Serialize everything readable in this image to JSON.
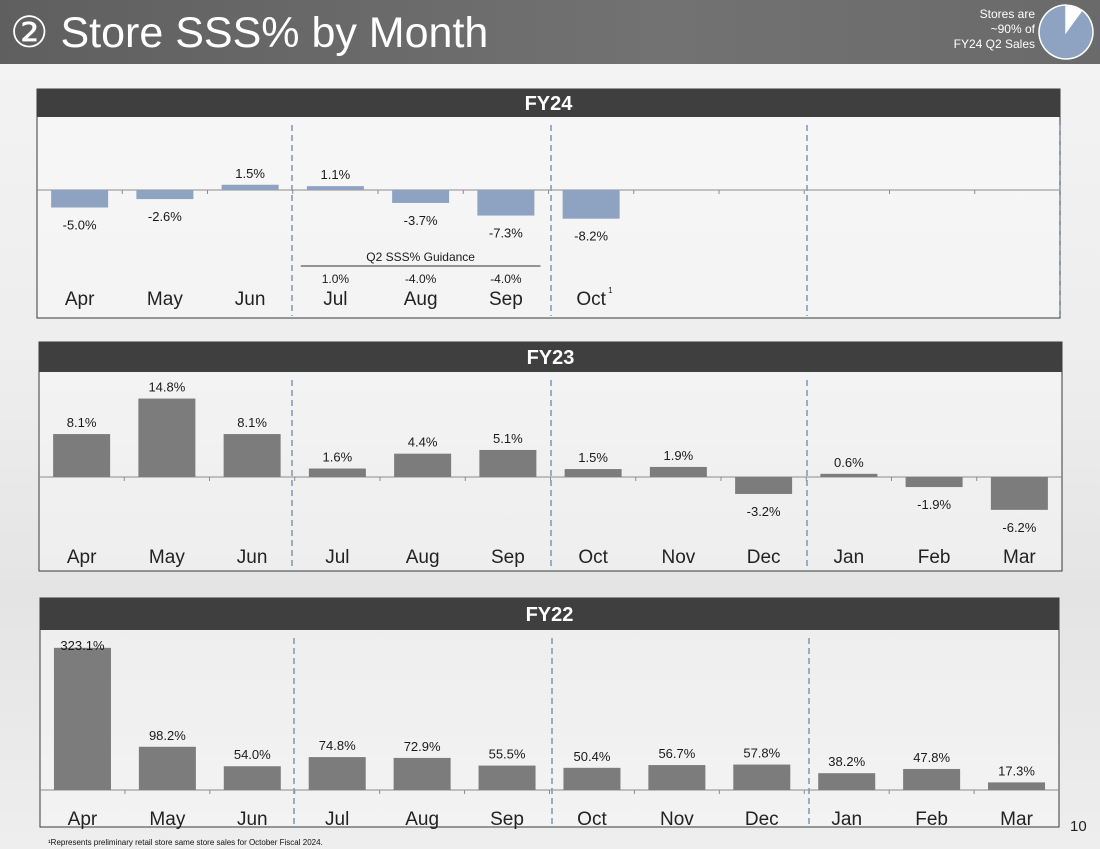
{
  "title": "② Store SSS% by Month",
  "stores_note": [
    "Stores are",
    "~90% of",
    "FY24 Q2 Sales"
  ],
  "colors": {
    "fy24_bar": "#8ea3c2",
    "fy23_bar": "#7c7c7c",
    "fy22_bar": "#7c7c7c",
    "panel_header": "#3f3f3f",
    "quarter_divider": "#8a9bb0",
    "pie_fill": "#8ea3c2"
  },
  "pie_share": 0.9,
  "footnote": "¹Represents preliminary retail store same store sales for October Fiscal 2024.",
  "page_number": "10",
  "chart_data": [
    {
      "type": "bar",
      "title": "FY24",
      "categories": [
        "Apr",
        "May",
        "Jun",
        "Jul",
        "Aug",
        "Sep",
        "Oct",
        "",
        "",
        "",
        "",
        ""
      ],
      "values": [
        -5.0,
        -2.6,
        1.5,
        1.1,
        -3.7,
        -7.3,
        -8.2,
        null,
        null,
        null,
        null,
        null
      ],
      "value_labels": [
        "-5.0%",
        "-2.6%",
        "1.5%",
        "1.1%",
        "-3.7%",
        "-7.3%",
        "-8.2%",
        "",
        "",
        "",
        "",
        ""
      ],
      "footnote_marker": {
        "category": "Oct",
        "text": "1"
      },
      "guidance": {
        "title": "Q2 SSS% Guidance",
        "categories": [
          "Jul",
          "Aug",
          "Sep"
        ],
        "values": [
          1.0,
          -4.0,
          -4.0
        ],
        "labels": [
          "1.0%",
          "-4.0%",
          "-4.0%"
        ]
      },
      "ylim": [
        -10,
        10
      ]
    },
    {
      "type": "bar",
      "title": "FY23",
      "categories": [
        "Apr",
        "May",
        "Jun",
        "Jul",
        "Aug",
        "Sep",
        "Oct",
        "Nov",
        "Dec",
        "Jan",
        "Feb",
        "Mar"
      ],
      "values": [
        8.1,
        14.8,
        8.1,
        1.6,
        4.4,
        5.1,
        1.5,
        1.9,
        -3.2,
        0.6,
        -1.9,
        -6.2
      ],
      "value_labels": [
        "8.1%",
        "14.8%",
        "8.1%",
        "1.6%",
        "4.4%",
        "5.1%",
        "1.5%",
        "1.9%",
        "-3.2%",
        "0.6%",
        "-1.9%",
        "-6.2%"
      ],
      "ylim": [
        -10,
        20
      ]
    },
    {
      "type": "bar",
      "title": "FY22",
      "categories": [
        "Apr",
        "May",
        "Jun",
        "Jul",
        "Aug",
        "Sep",
        "Oct",
        "Nov",
        "Dec",
        "Jan",
        "Feb",
        "Mar"
      ],
      "values": [
        323.1,
        98.2,
        54.0,
        74.8,
        72.9,
        55.5,
        50.4,
        56.7,
        57.8,
        38.2,
        47.8,
        17.3
      ],
      "value_labels": [
        "323.1%",
        "98.2%",
        "54.0%",
        "74.8%",
        "72.9%",
        "55.5%",
        "50.4%",
        "56.7%",
        "57.8%",
        "38.2%",
        "47.8%",
        "17.3%"
      ],
      "ylim": [
        0,
        330
      ]
    }
  ]
}
